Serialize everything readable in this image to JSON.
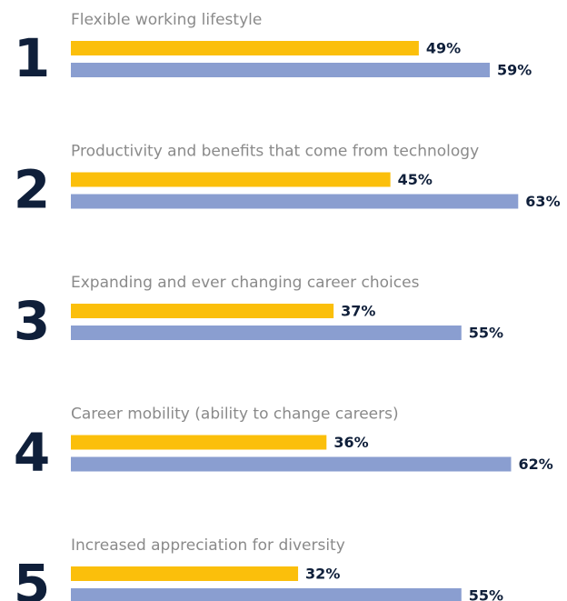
{
  "chart_data": {
    "type": "bar",
    "ranks": [
      "1",
      "2",
      "3",
      "4",
      "5"
    ],
    "categories": [
      "Flexible working lifestyle",
      "Productivity and benefits that come from technology",
      "Expanding and ever changing career choices",
      "Career mobility (ability to change careers)",
      "Increased appreciation for diversity"
    ],
    "series": [
      {
        "color": "#fbbf0b",
        "values": [
          49,
          45,
          37,
          36,
          32
        ],
        "value_labels": [
          "49%",
          "45%",
          "37%",
          "36%",
          "32%"
        ]
      },
      {
        "color": "#8a9ed0",
        "values": [
          59,
          63,
          55,
          62,
          55
        ],
        "value_labels": [
          "59%",
          "63%",
          "55%",
          "62%",
          "55%"
        ]
      }
    ],
    "xlim": [
      0,
      70
    ]
  }
}
